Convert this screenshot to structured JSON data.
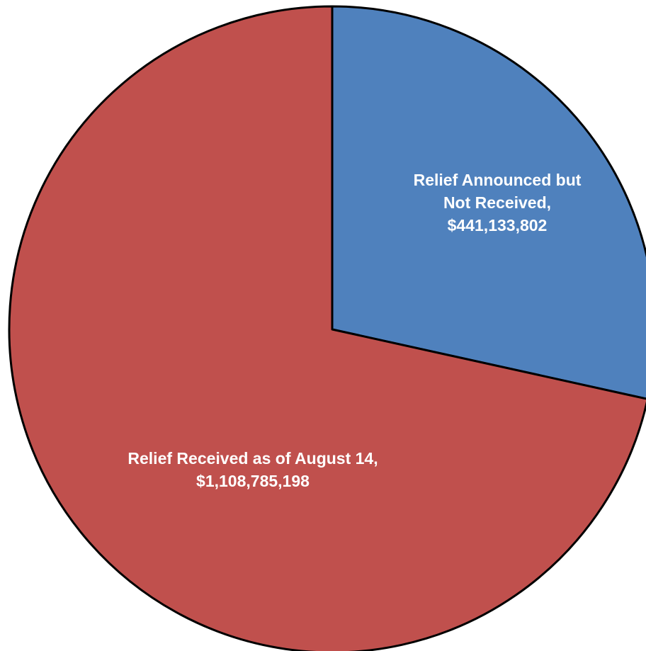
{
  "chart_data": {
    "type": "pie",
    "title": "",
    "legend": "none",
    "start_angle_deg": 0,
    "direction": "clockwise",
    "slices": [
      {
        "name": "Relief Announced but Not Received",
        "value": 441133802,
        "color": "#4F81BD",
        "label_lines": [
          "Relief Announced but",
          "Not Received,",
          "$441,133,802"
        ]
      },
      {
        "name": "Relief Received as of August 14",
        "value": 1108785198,
        "color": "#C0504D",
        "label_lines": [
          "Relief Received as of August 14,",
          "$1,108,785,198"
        ]
      }
    ]
  }
}
